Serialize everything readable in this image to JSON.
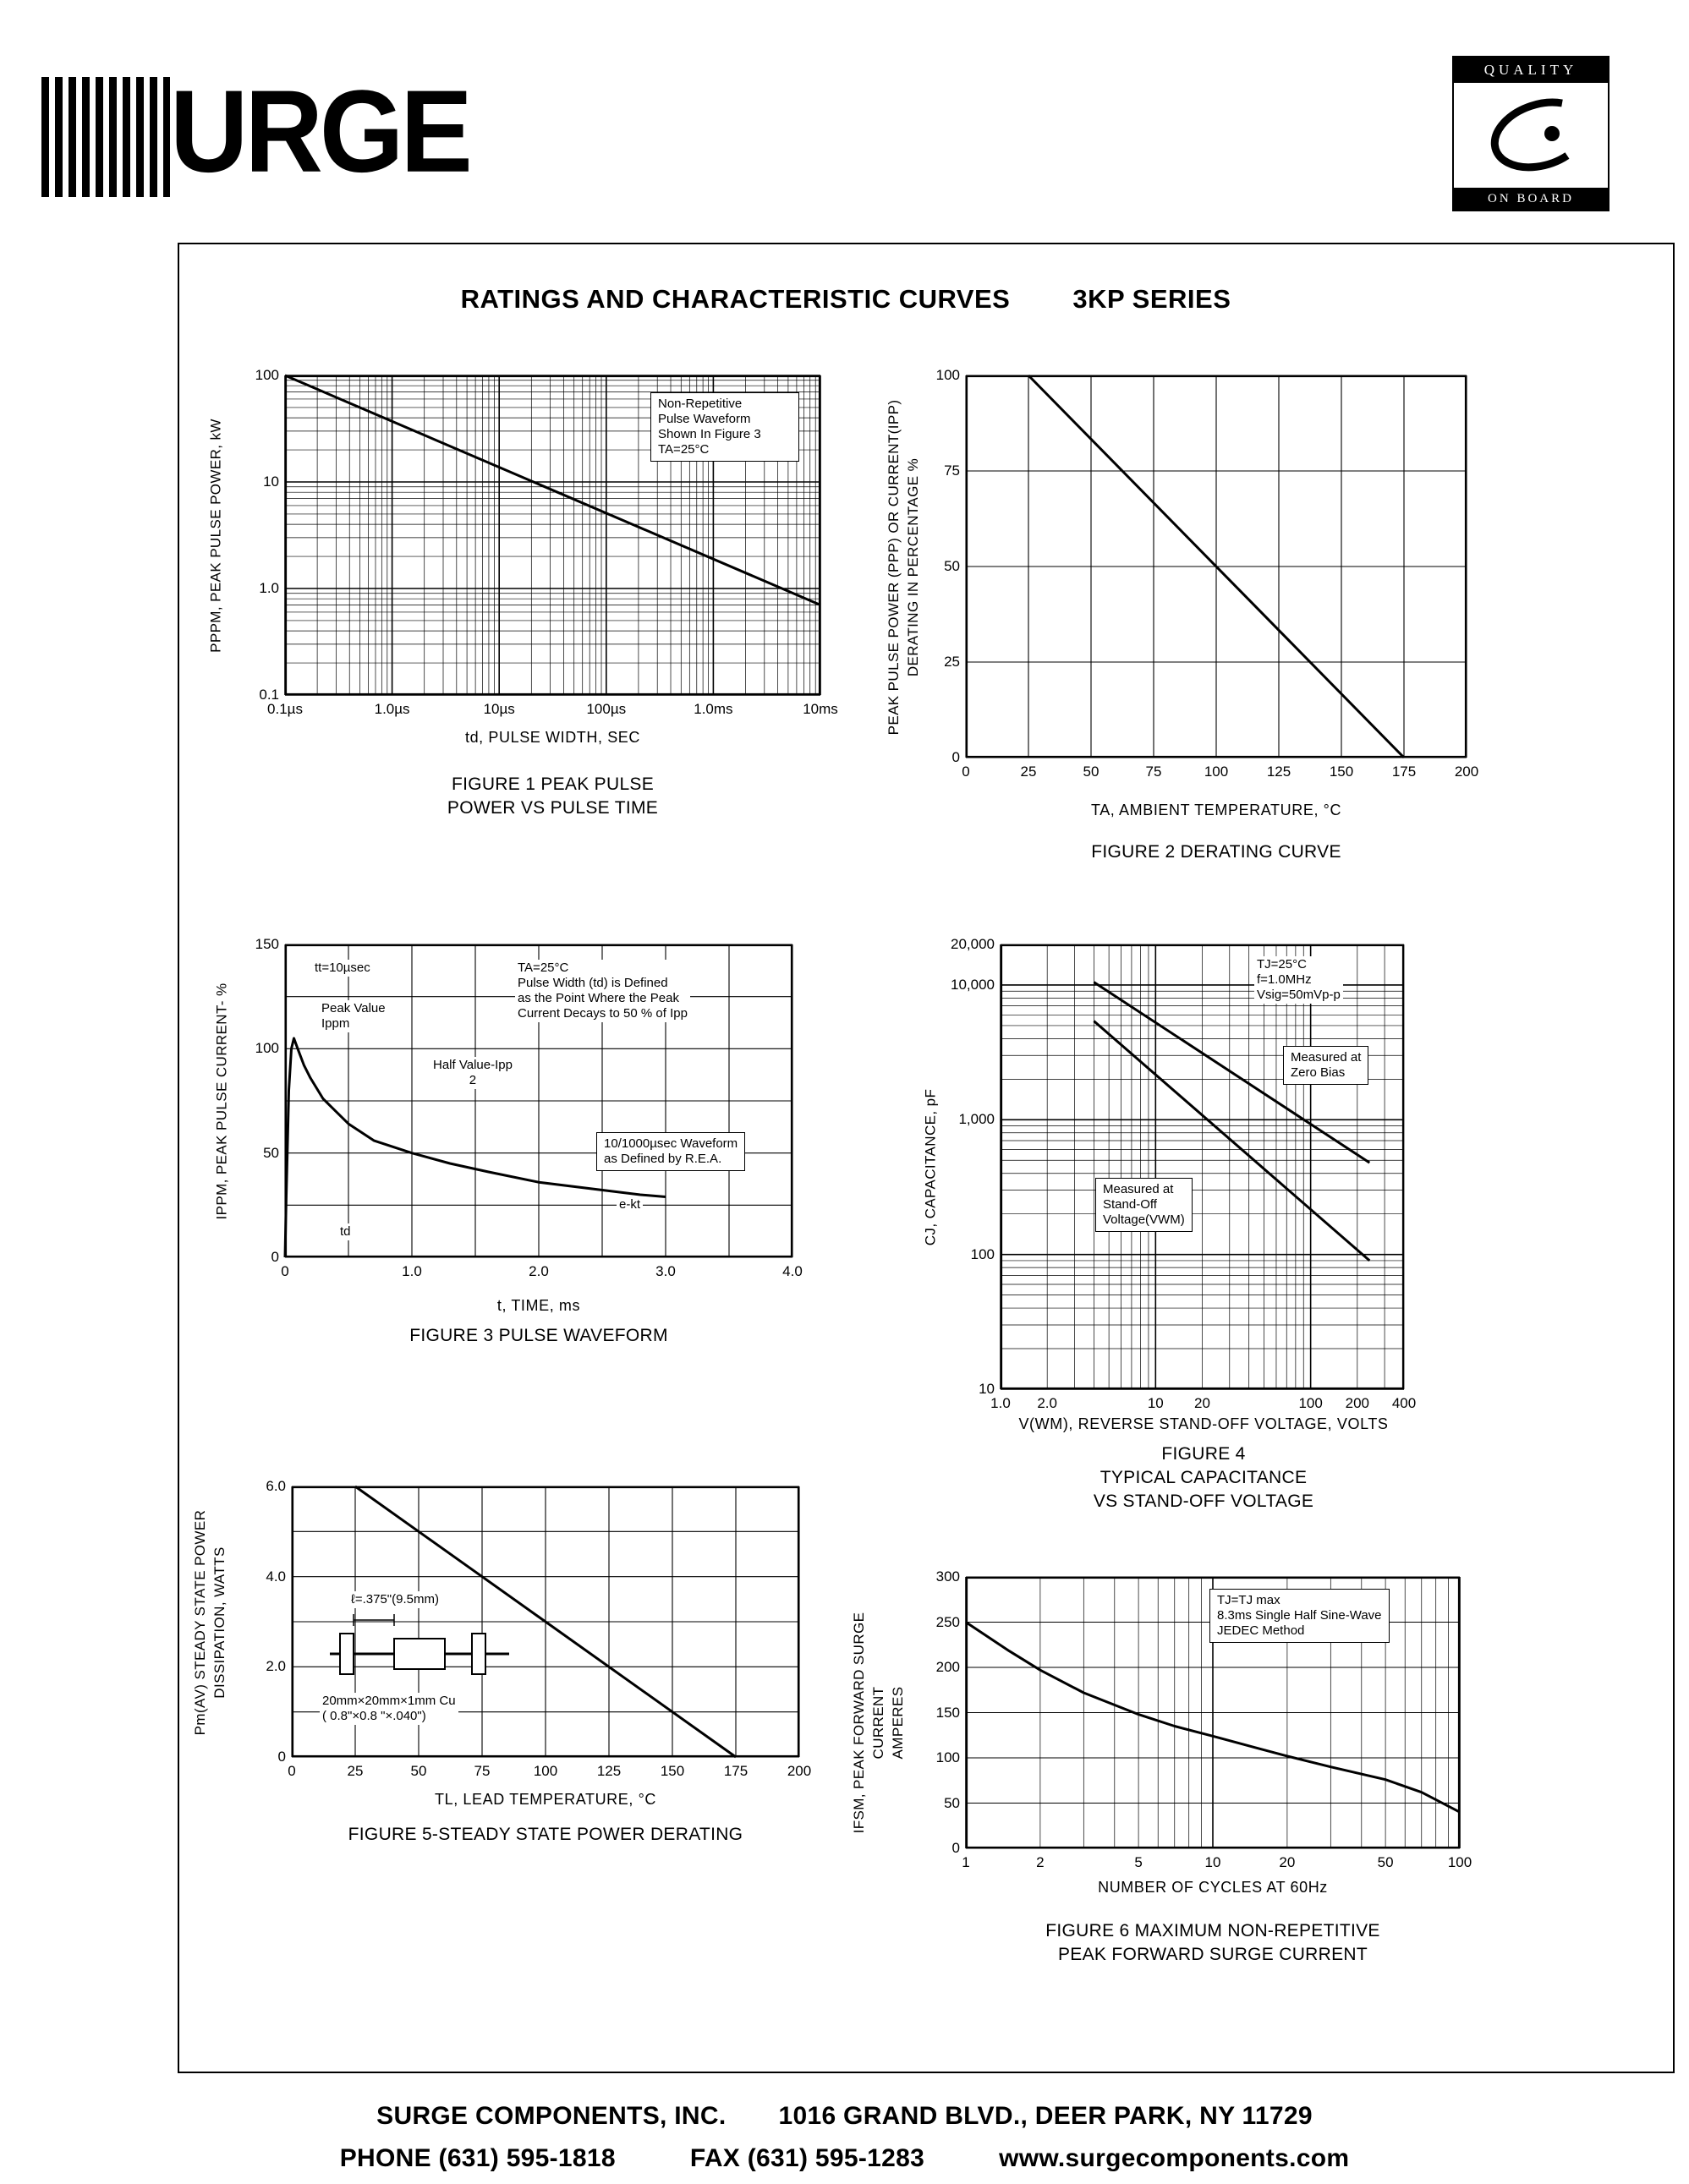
{
  "page": {
    "title_left": "RATINGS AND CHARACTERISTIC CURVES",
    "title_right": "3KP SERIES",
    "footer": {
      "company": "SURGE COMPONENTS, INC.",
      "address": "1016 GRAND BLVD., DEER PARK, NY  11729",
      "phone": "PHONE (631) 595-1818",
      "fax": "FAX (631) 595-1283",
      "website": "www.surgecomponents.com"
    }
  },
  "logos": {
    "surge_text": "URGE",
    "quality_top": "QUALITY",
    "quality_bottom": "ON BOARD"
  },
  "chart_data": [
    {
      "id": "fig1",
      "type": "line",
      "title": "FIGURE 1 PEAK PULSE\nPOWER VS PULSE TIME",
      "xlabel": "td, PULSE WIDTH, SEC",
      "ylabel": "PPPM, PEAK PULSE POWER, kW",
      "xscale": "log",
      "yscale": "log",
      "xmin": 1e-07,
      "xmax": 0.01,
      "ymin": 0.1,
      "ymax": 100,
      "xticks": [
        {
          "v": 1e-07,
          "l": "0.1µs"
        },
        {
          "v": 1e-06,
          "l": "1.0µs"
        },
        {
          "v": 1e-05,
          "l": "10µs"
        },
        {
          "v": 0.0001,
          "l": "100µs"
        },
        {
          "v": 0.001,
          "l": "1.0ms"
        },
        {
          "v": 0.01,
          "l": "10ms"
        }
      ],
      "yticks": [
        {
          "v": 100,
          "l": "100"
        },
        {
          "v": 10,
          "l": "10"
        },
        {
          "v": 1,
          "l": "1.0"
        },
        {
          "v": 0.1,
          "l": "0.1"
        }
      ],
      "series": [
        {
          "name": "peak pulse power vs pulse width",
          "points": [
            [
              1e-07,
              100
            ],
            [
              0.01,
              0.7
            ]
          ]
        }
      ],
      "annotations": {
        "cond": "Non-Repetitive\nPulse Waveform\nShown In Figure 3\nTA=25°C"
      }
    },
    {
      "id": "fig2",
      "type": "line",
      "title": "FIGURE 2 DERATING CURVE",
      "xlabel": "TA, AMBIENT  TEMPERATURE, °C",
      "ylabel": "PEAK PULSE POWER (PPP) OR CURRENT(IPP)\nDERATING IN PERCENTAGE %",
      "xscale": "linear",
      "yscale": "linear",
      "xmin": 0,
      "xmax": 200,
      "ymin": 0,
      "ymax": 100,
      "xgrid": 25,
      "ygrid": 25,
      "xticks": [
        {
          "v": 0,
          "l": "0"
        },
        {
          "v": 25,
          "l": "25"
        },
        {
          "v": 50,
          "l": "50"
        },
        {
          "v": 75,
          "l": "75"
        },
        {
          "v": 100,
          "l": "100"
        },
        {
          "v": 125,
          "l": "125"
        },
        {
          "v": 150,
          "l": "150"
        },
        {
          "v": 175,
          "l": "175"
        },
        {
          "v": 200,
          "l": "200"
        }
      ],
      "yticks": [
        {
          "v": 100,
          "l": "100"
        },
        {
          "v": 75,
          "l": "75"
        },
        {
          "v": 50,
          "l": "50"
        },
        {
          "v": 25,
          "l": "25"
        },
        {
          "v": 0,
          "l": "0"
        }
      ],
      "series": [
        {
          "name": "derating",
          "points": [
            [
              25,
              100
            ],
            [
              175,
              0
            ]
          ]
        }
      ]
    },
    {
      "id": "fig3",
      "type": "line",
      "title": "FIGURE 3  PULSE WAVEFORM",
      "xlabel": "t, TIME, ms",
      "ylabel": "IPPM, PEAK PULSE CURRENT- %",
      "xscale": "linear",
      "yscale": "linear",
      "xmin": 0,
      "xmax": 4,
      "ymin": 0,
      "ymax": 150,
      "xgrid": 0.5,
      "ygrid": 25,
      "xticks": [
        {
          "v": 0,
          "l": "0"
        },
        {
          "v": 1,
          "l": "1.0"
        },
        {
          "v": 2,
          "l": "2.0"
        },
        {
          "v": 3,
          "l": "3.0"
        },
        {
          "v": 4,
          "l": "4.0"
        }
      ],
      "yticks": [
        {
          "v": 150,
          "l": "150"
        },
        {
          "v": 100,
          "l": "100"
        },
        {
          "v": 50,
          "l": "50"
        },
        {
          "v": 0,
          "l": "0"
        }
      ],
      "series": [
        {
          "name": "10/1000µsec pulse waveform",
          "points": [
            [
              0,
              0
            ],
            [
              0.01,
              30
            ],
            [
              0.03,
              80
            ],
            [
              0.05,
              100
            ],
            [
              0.07,
              105
            ],
            [
              0.1,
              100
            ],
            [
              0.15,
              92
            ],
            [
              0.2,
              86
            ],
            [
              0.3,
              76
            ],
            [
              0.4,
              70
            ],
            [
              0.5,
              64
            ],
            [
              0.7,
              56
            ],
            [
              1.0,
              50
            ],
            [
              1.3,
              45
            ],
            [
              1.6,
              41
            ],
            [
              2.0,
              36
            ],
            [
              2.4,
              33
            ],
            [
              2.8,
              30
            ],
            [
              3.0,
              29
            ]
          ]
        }
      ],
      "annotations": {
        "tt": "tt=10µsec",
        "peak": "Peak Value\nIppm",
        "half": "Half Value-Ipp\n2",
        "cond": "TA=25°C\nPulse Width (td) is Defined\nas the Point Where the Peak\nCurrent Decays to 50 % of Ipp",
        "wave": "10/1000µsec Waveform\nas Defined by R.E.A.",
        "ekt": "e-kt",
        "td": "td"
      }
    },
    {
      "id": "fig4",
      "type": "line",
      "title": "FIGURE 4\nTYPICAL CAPACITANCE\nVS STAND-OFF VOLTAGE",
      "xlabel": "V(WM), REVERSE STAND-OFF VOLTAGE, VOLTS",
      "ylabel": "CJ, CAPACITANCE, pF",
      "xscale": "log",
      "yscale": "log",
      "xmin": 1,
      "xmax": 400,
      "ymin": 10,
      "ymax": 20000,
      "xticks": [
        {
          "v": 1,
          "l": "1.0"
        },
        {
          "v": 2,
          "l": "2.0"
        },
        {
          "v": 10,
          "l": "10"
        },
        {
          "v": 20,
          "l": "20"
        },
        {
          "v": 100,
          "l": "100"
        },
        {
          "v": 200,
          "l": "200"
        },
        {
          "v": 400,
          "l": "400"
        }
      ],
      "yticks": [
        {
          "v": 20000,
          "l": "20,000"
        },
        {
          "v": 10000,
          "l": "10,000"
        },
        {
          "v": 1000,
          "l": "1,000"
        },
        {
          "v": 100,
          "l": "100"
        },
        {
          "v": 10,
          "l": "10"
        }
      ],
      "series": [
        {
          "name": "Measured at Zero Bias",
          "points": [
            [
              4,
              10500
            ],
            [
              240,
              480
            ]
          ]
        },
        {
          "name": "Measured at Stand-Off Voltage (VWM)",
          "points": [
            [
              4,
              5400
            ],
            [
              240,
              90
            ]
          ]
        }
      ],
      "annotations": {
        "cond": "TJ=25°C\nf=1.0MHz\nVsig=50mVp-p",
        "zero": "Measured at\nZero Bias",
        "vwm": "Measured at\nStand-Off\nVoltage(VWM)"
      }
    },
    {
      "id": "fig5",
      "type": "line",
      "title": "FIGURE 5-STEADY STATE POWER DERATING",
      "xlabel": "TL, LEAD  TEMPERATURE, °C",
      "ylabel": "Pm(AV) STEADY STATE POWER\nDISSIPATION, WATTS",
      "xscale": "linear",
      "yscale": "linear",
      "xmin": 0,
      "xmax": 200,
      "ymin": 0,
      "ymax": 6,
      "xgrid": 25,
      "ygrid": 1,
      "xticks": [
        {
          "v": 0,
          "l": "0"
        },
        {
          "v": 25,
          "l": "25"
        },
        {
          "v": 50,
          "l": "50"
        },
        {
          "v": 75,
          "l": "75"
        },
        {
          "v": 100,
          "l": "100"
        },
        {
          "v": 125,
          "l": "125"
        },
        {
          "v": 150,
          "l": "150"
        },
        {
          "v": 175,
          "l": "175"
        },
        {
          "v": 200,
          "l": "200"
        }
      ],
      "yticks": [
        {
          "v": 6,
          "l": "6.0"
        },
        {
          "v": 4,
          "l": "4.0"
        },
        {
          "v": 2,
          "l": "2.0"
        },
        {
          "v": 0,
          "l": "0"
        }
      ],
      "series": [
        {
          "name": "steady state power derating",
          "points": [
            [
              25,
              6
            ],
            [
              175,
              0
            ]
          ]
        }
      ],
      "annotations": {
        "lead": "ℓ=.375\"(9.5mm)",
        "plate": "20mm×20mm×1mm Cu\n( 0.8\"×0.8 \"×.040\")"
      }
    },
    {
      "id": "fig6",
      "type": "line",
      "title": "FIGURE 6  MAXIMUM NON-REPETITIVE\nPEAK FORWARD SURGE CURRENT",
      "xlabel": "NUMBER  OF  CYCLES  AT  60Hz",
      "ylabel": "IFSM, PEAK FORWARD SURGE CURRENT\nAMPERES",
      "xscale": "log",
      "yscale": "linear",
      "xmin": 1,
      "xmax": 100,
      "ymin": 0,
      "ymax": 300,
      "ygrid": 50,
      "xticks": [
        {
          "v": 1,
          "l": "1"
        },
        {
          "v": 2,
          "l": "2"
        },
        {
          "v": 5,
          "l": "5"
        },
        {
          "v": 10,
          "l": "10"
        },
        {
          "v": 20,
          "l": "20"
        },
        {
          "v": 50,
          "l": "50"
        },
        {
          "v": 100,
          "l": "100"
        }
      ],
      "yticks": [
        {
          "v": 300,
          "l": "300"
        },
        {
          "v": 250,
          "l": "250"
        },
        {
          "v": 200,
          "l": "200"
        },
        {
          "v": 150,
          "l": "150"
        },
        {
          "v": 100,
          "l": "100"
        },
        {
          "v": 50,
          "l": "50"
        },
        {
          "v": 0,
          "l": "0"
        }
      ],
      "series": [
        {
          "name": "peak forward surge current",
          "points": [
            [
              1,
              250
            ],
            [
              1.5,
              218
            ],
            [
              2,
              197
            ],
            [
              3,
              172
            ],
            [
              5,
              148
            ],
            [
              7,
              135
            ],
            [
              10,
              124
            ],
            [
              15,
              111
            ],
            [
              20,
              102
            ],
            [
              30,
              90
            ],
            [
              50,
              76
            ],
            [
              70,
              62
            ],
            [
              100,
              40
            ]
          ]
        }
      ],
      "annotations": {
        "cond": "TJ=TJ max\n8.3ms Single Half Sine-Wave\nJEDEC Method"
      }
    }
  ]
}
